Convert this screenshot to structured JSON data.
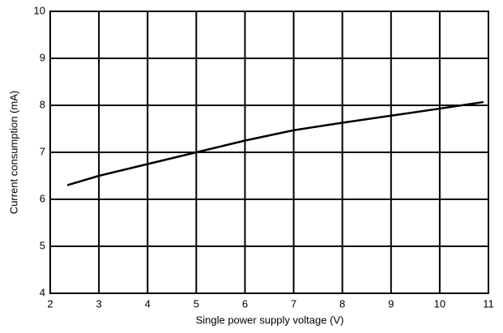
{
  "chart_data": {
    "type": "line",
    "xlabel": "Single power supply voltage (V)",
    "ylabel": "Current consumption (mA)",
    "x": [
      2.35,
      3,
      4,
      5,
      6,
      7,
      8,
      9,
      10,
      10.9
    ],
    "series": [
      {
        "color": "#000000",
        "values": [
          6.3,
          6.5,
          6.75,
          7.0,
          7.25,
          7.47,
          7.63,
          7.78,
          7.93,
          8.07
        ]
      }
    ],
    "xlim": [
      2,
      11
    ],
    "xticks": [
      2,
      3,
      4,
      5,
      6,
      7,
      8,
      9,
      10,
      11
    ],
    "ylim": [
      4,
      10
    ],
    "yticks": [
      4,
      5,
      6,
      7,
      8,
      9,
      10
    ],
    "grid": true
  }
}
